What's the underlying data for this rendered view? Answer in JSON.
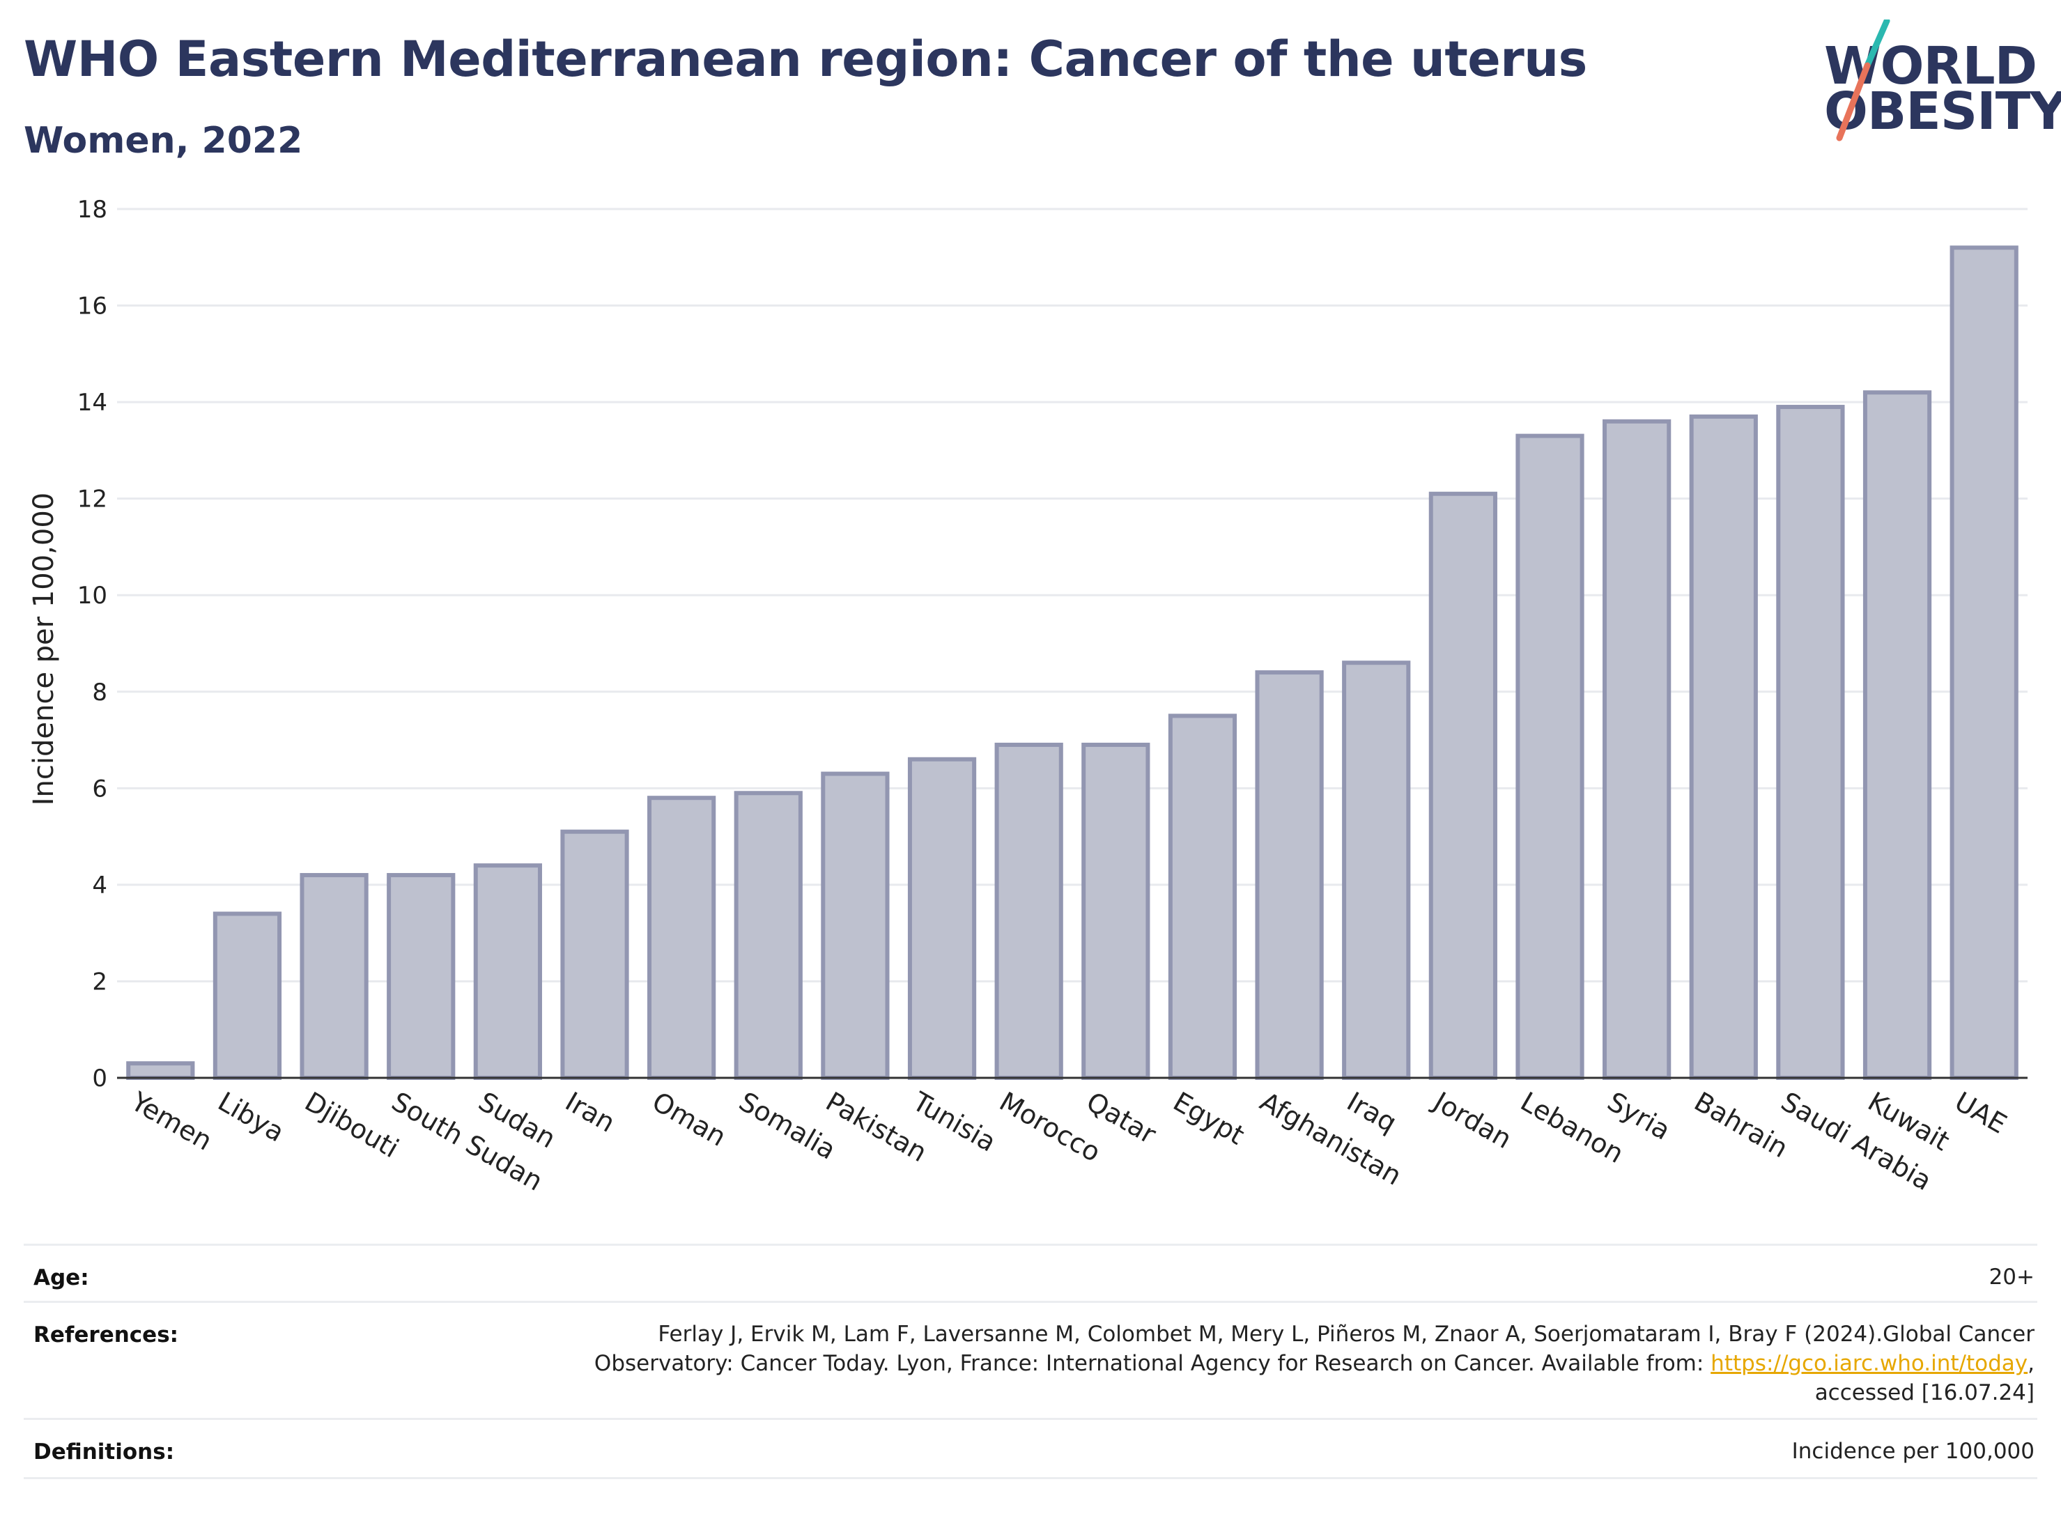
{
  "header": {
    "title": "WHO Eastern Mediterranean region: Cancer of the uterus",
    "subtitle": "Women, 2022"
  },
  "logo": {
    "line1": "WORLD",
    "line2": "OBESITY",
    "accent_colors": [
      "#2bb8b0",
      "#e8735a"
    ]
  },
  "chart_data": {
    "type": "bar",
    "ylabel": "Incidence per 100,000",
    "ylim": [
      0,
      18
    ],
    "yticks": [
      0,
      2,
      4,
      6,
      8,
      10,
      12,
      14,
      16,
      18
    ],
    "grid": true,
    "categories": [
      "Yemen",
      "Libya",
      "Djibouti",
      "South Sudan",
      "Sudan",
      "Iran",
      "Oman",
      "Somalia",
      "Pakistan",
      "Tunisia",
      "Morocco",
      "Qatar",
      "Egypt",
      "Afghanistan",
      "Iraq",
      "Jordan",
      "Lebanon",
      "Syria",
      "Bahrain",
      "Saudi Arabia",
      "Kuwait",
      "UAE"
    ],
    "values": [
      0.3,
      3.4,
      4.2,
      4.2,
      4.4,
      5.1,
      5.8,
      5.9,
      6.3,
      6.6,
      6.9,
      6.9,
      7.5,
      8.4,
      8.6,
      12.1,
      13.3,
      13.6,
      13.7,
      13.9,
      14.2,
      17.2
    ],
    "bar_fill": "#bec1cf",
    "bar_stroke": "#9296b1"
  },
  "footer": {
    "age_label": "Age:",
    "age_value": "20+",
    "references_label": "References:",
    "references_line1": "Ferlay J, Ervik M, Lam F, Laversanne M, Colombet M, Mery L, Piñeros M, Znaor A, Soerjomataram I, Bray F (2024).Global Cancer",
    "references_line2_prefix": "Observatory: Cancer Today. Lyon, France: International Agency for Research on Cancer. Available from: ",
    "references_link": "https://gco.iarc.who.int/today",
    "references_line2_suffix": ",",
    "references_line3": "accessed [16.07.24]",
    "definitions_label": "Definitions:",
    "definitions_value": "Incidence per 100,000"
  }
}
